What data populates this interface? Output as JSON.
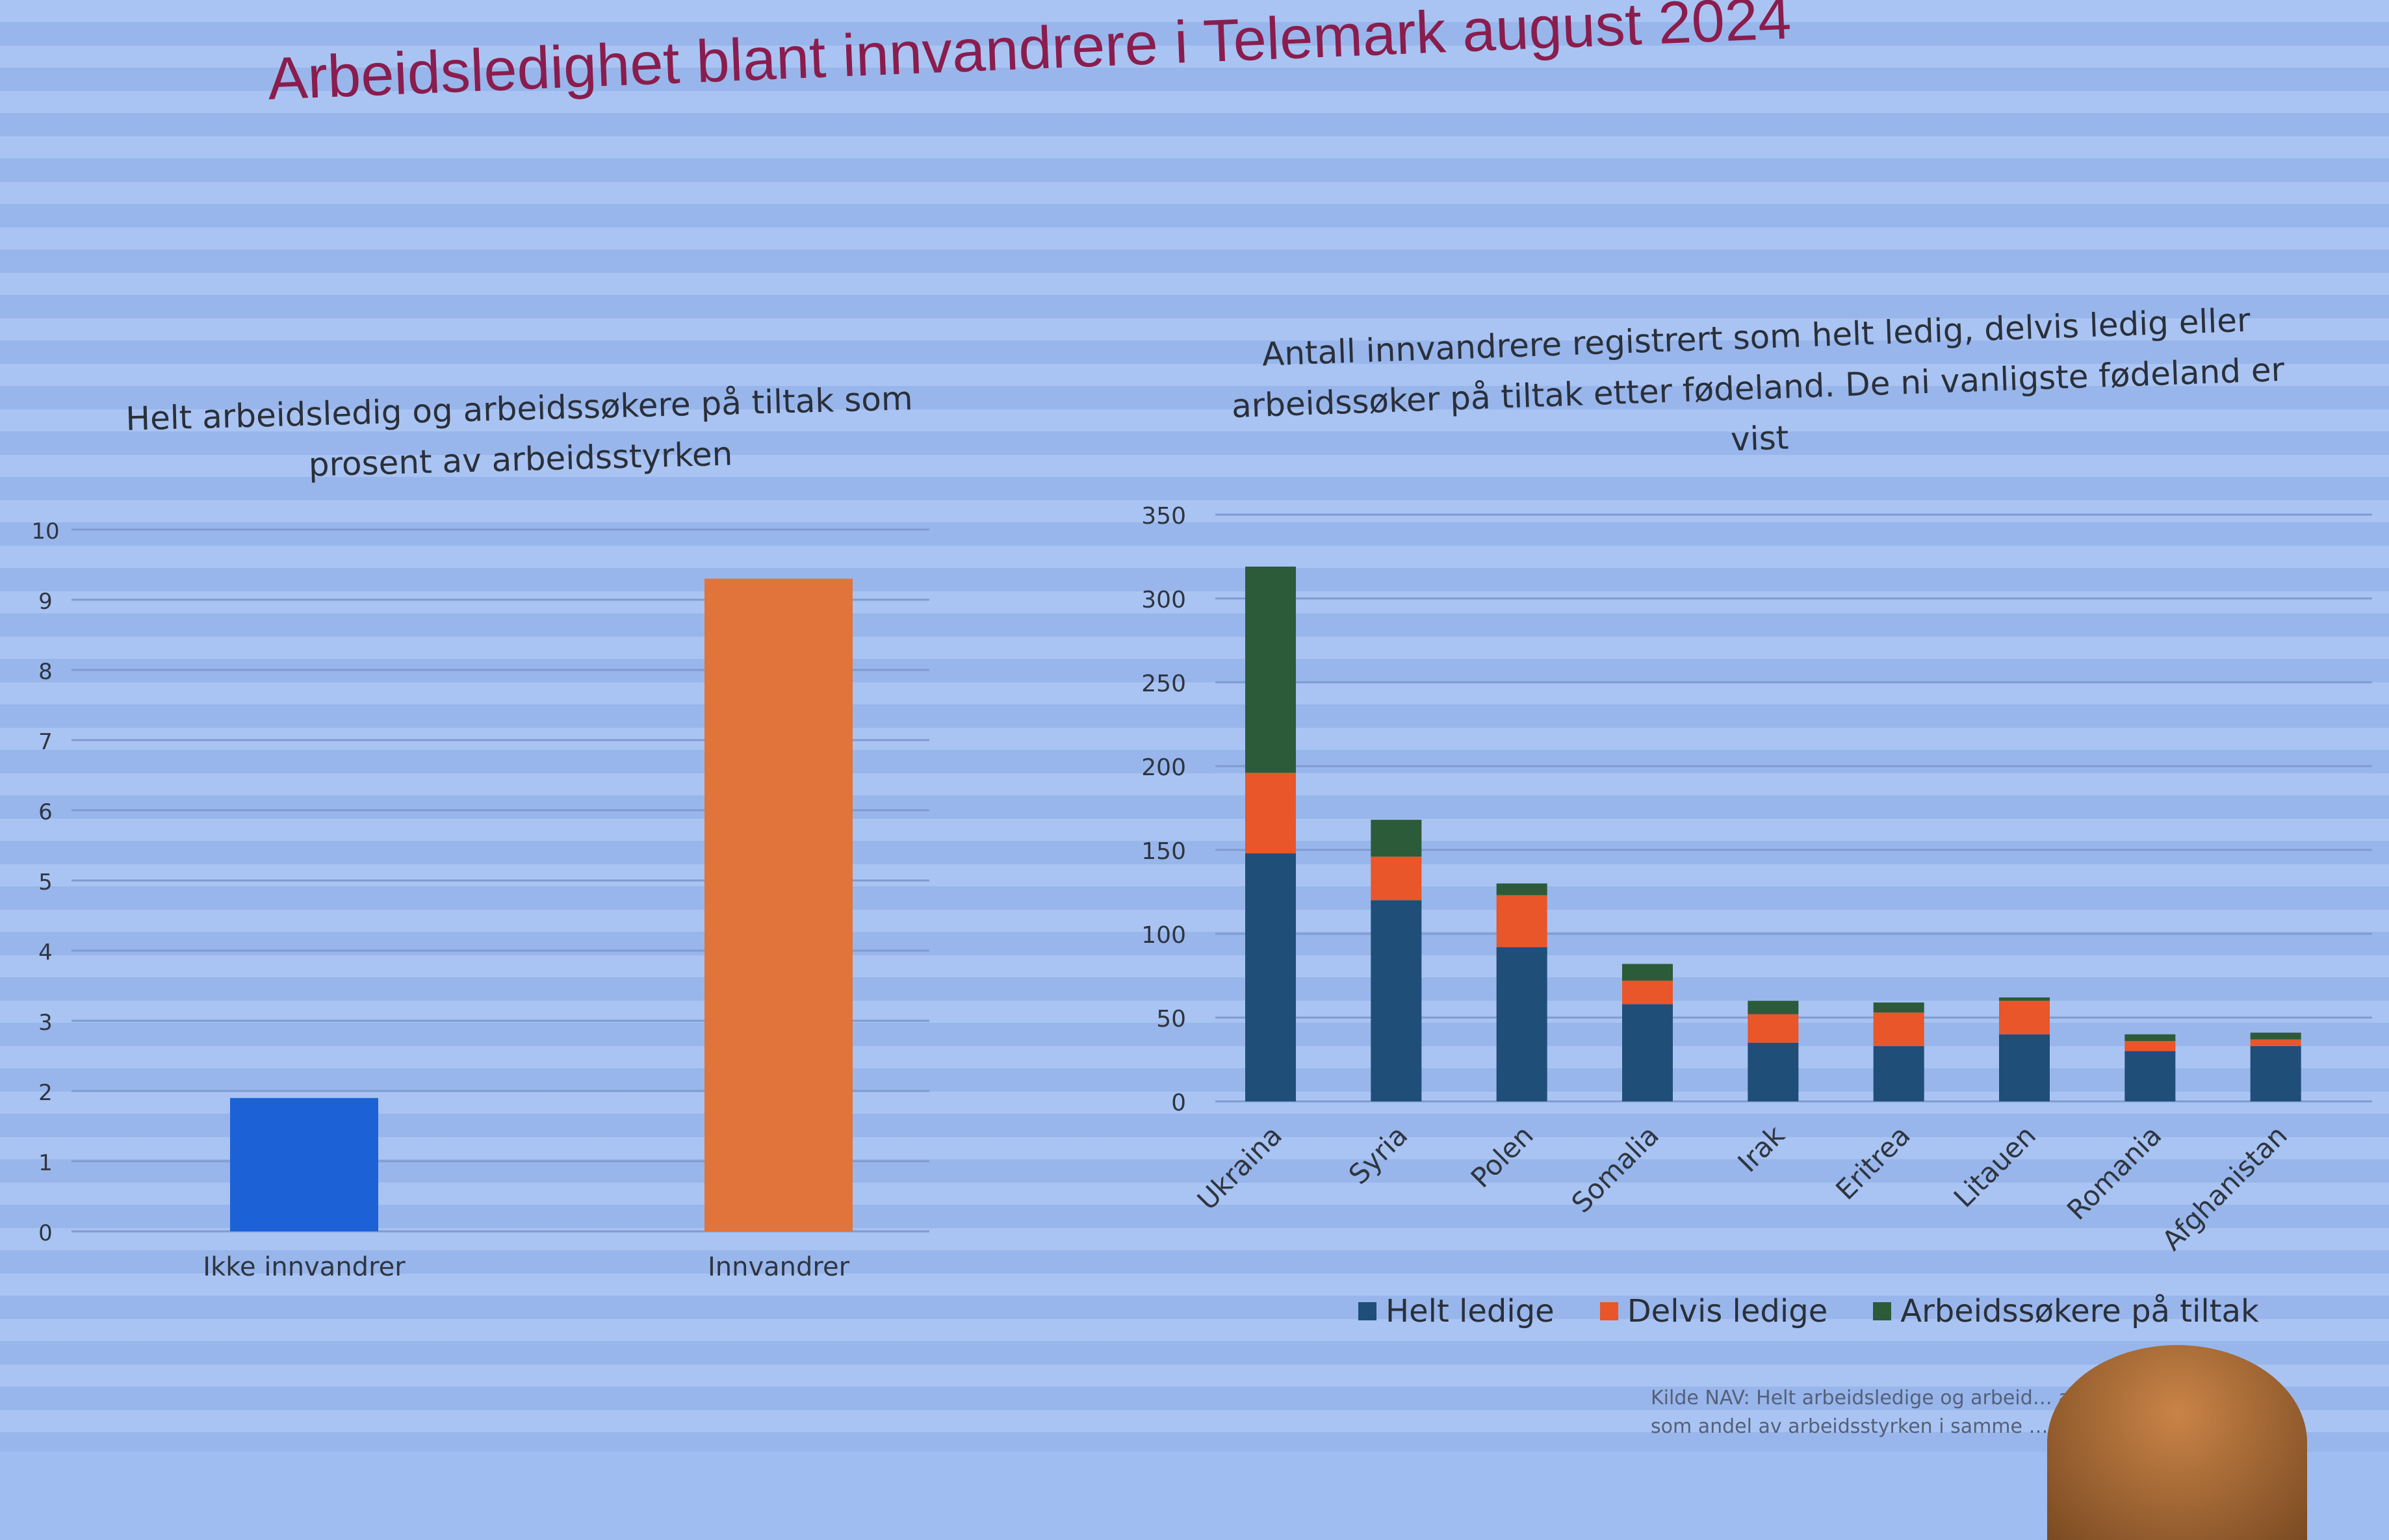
{
  "title": "Arbeidsledighet blant innvandrere i Telemark august 2024",
  "colors": {
    "title": "#8a1d4e",
    "ikke_innvandrer": "#1c62d6",
    "innvandrer": "#e0743a",
    "helt_ledige": "#1f4e79",
    "delvis_ledige": "#e8562a",
    "arbeidssokere_pa_tiltak": "#2c5b3a"
  },
  "left_chart": {
    "title": "Helt arbeidsledig og arbeidssøkere på tiltak som prosent av arbeidsstyrken"
  },
  "right_chart": {
    "title": "Antall innvandrere registrert som helt ledig, delvis ledig eller arbeidssøker på tiltak etter fødeland. De ni vanligste fødeland er vist"
  },
  "legend": {
    "helt": "Helt ledige",
    "delvis": "Delvis ledige",
    "tiltak": "Arbeidssøkere på tiltak"
  },
  "source": {
    "line1": "Kilde NAV: Helt arbeidsledige og arbeid… august 20",
    "line2": "som andel av arbeidsstyrken i samme … grunn)."
  },
  "chart_data": [
    {
      "type": "bar",
      "title": "Helt arbeidsledig og arbeidssøkere på tiltak som prosent av arbeidsstyrken",
      "categories": [
        "Ikke innvandrer",
        "Innvandrer"
      ],
      "values": [
        1.9,
        9.3
      ],
      "ylim": [
        0,
        10
      ],
      "yticks": [
        "0",
        "1",
        "2",
        "3",
        "4",
        "5",
        "6",
        "7",
        "8",
        "9",
        "10"
      ],
      "grid": true
    },
    {
      "type": "bar",
      "stacked": true,
      "title": "Antall innvandrere registrert som helt ledig, delvis ledig eller arbeidssøker på tiltak etter fødeland. De ni vanligste fødeland er vist",
      "categories": [
        "Ukraina",
        "Syria",
        "Polen",
        "Somalia",
        "Irak",
        "Eritrea",
        "Litauen",
        "Romania",
        "Afghanistan"
      ],
      "series": [
        {
          "name": "Helt ledige",
          "values": [
            148,
            120,
            92,
            58,
            35,
            33,
            40,
            30,
            33
          ]
        },
        {
          "name": "Delvis ledige",
          "values": [
            48,
            26,
            31,
            14,
            17,
            20,
            20,
            6,
            4
          ]
        },
        {
          "name": "Arbeidssøkere på tiltak",
          "values": [
            123,
            22,
            7,
            10,
            8,
            6,
            2,
            4,
            4
          ]
        }
      ],
      "ylim": [
        0,
        350
      ],
      "yticks": [
        "0",
        "50",
        "100",
        "150",
        "200",
        "250",
        "300",
        "350"
      ],
      "legend_position": "bottom",
      "grid": true
    }
  ]
}
